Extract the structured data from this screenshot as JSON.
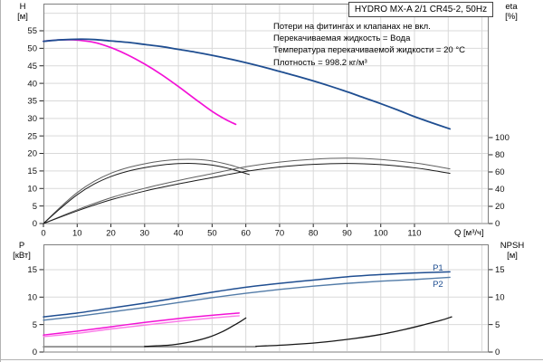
{
  "title_box": "HYDRO MX-A 2/1 CR45-2, 50Hz",
  "notes": [
    "Потери на фитингах и клапанах не вкл.",
    "Перекачиваемая жидкость = Вода",
    "Температура перекачиваемой жидкости = 20 °C",
    "Плотность = 998.2 кг/м³"
  ],
  "colors": {
    "blue": "#1f4e91",
    "blue_light": "#537ca8",
    "magenta": "#f311d6",
    "magenta_light": "#fb7ae8",
    "eta_dark": "#1a1a1a",
    "eta_grey": "#5f5f5f",
    "npsh_black": "#161616",
    "npsh_grey": "#8c8c8c",
    "grid": "#d9d9d9",
    "frame": "#7f7f7f"
  },
  "chart_data": [
    {
      "type": "line",
      "name": "head-and-efficiency",
      "x": {
        "label": "Q [м³/ч]",
        "min": 0,
        "max": 132,
        "ticks": [
          0,
          10,
          20,
          30,
          40,
          50,
          60,
          70,
          80,
          90,
          100,
          110
        ]
      },
      "y_left": {
        "name": "H",
        "unit": "[м]",
        "min": 0,
        "max": 62.8,
        "ticks": [
          0,
          5,
          10,
          15,
          20,
          25,
          30,
          35,
          40,
          45,
          50,
          55
        ]
      },
      "y_right": {
        "name": "eta",
        "unit": "[%]",
        "ticks": [
          0,
          20,
          40,
          60,
          80,
          100
        ]
      },
      "grid": true,
      "series": [
        {
          "id": "eta-1pump-upper",
          "name": "eta 1 pump (upper)",
          "axis": "eta",
          "color": "#5f5f5f",
          "width": 1,
          "points": [
            [
              0,
              0
            ],
            [
              5,
              19
            ],
            [
              10,
              36
            ],
            [
              15,
              49
            ],
            [
              20,
              58.5
            ],
            [
              25,
              65
            ],
            [
              30,
              69.5
            ],
            [
              35,
              72.8
            ],
            [
              40,
              74.5
            ],
            [
              45,
              74.6
            ],
            [
              50,
              72.8
            ],
            [
              55,
              68.5
            ],
            [
              58,
              65
            ],
            [
              61,
              61.5
            ]
          ]
        },
        {
          "id": "eta-1pump-lower",
          "name": "eta 1 pump (lower)",
          "axis": "eta",
          "color": "#1a1a1a",
          "width": 1,
          "points": [
            [
              0,
              0
            ],
            [
              5,
              17.5
            ],
            [
              10,
              33.5
            ],
            [
              15,
              45.8
            ],
            [
              20,
              54.7
            ],
            [
              25,
              60.8
            ],
            [
              30,
              65
            ],
            [
              35,
              68
            ],
            [
              40,
              69.7
            ],
            [
              45,
              69.8
            ],
            [
              50,
              68
            ],
            [
              55,
              64
            ],
            [
              58,
              60.7
            ],
            [
              61,
              57
            ]
          ]
        },
        {
          "id": "eta-2pumps-upper",
          "name": "eta 2 pumps (upper)",
          "axis": "eta",
          "color": "#5f5f5f",
          "width": 1,
          "points": [
            [
              0,
              0
            ],
            [
              10,
              16
            ],
            [
              20,
              30
            ],
            [
              30,
              41
            ],
            [
              40,
              50
            ],
            [
              50,
              58
            ],
            [
              60,
              66
            ],
            [
              70,
              71.5
            ],
            [
              80,
              74.8
            ],
            [
              90,
              76
            ],
            [
              100,
              74.5
            ],
            [
              110,
              70.5
            ],
            [
              115,
              67.5
            ],
            [
              120.5,
              63.5
            ]
          ]
        },
        {
          "id": "eta-2pumps-lower",
          "name": "eta 2 pumps (lower)",
          "axis": "eta",
          "color": "#1a1a1a",
          "width": 1,
          "points": [
            [
              0,
              0
            ],
            [
              10,
              14.7
            ],
            [
              20,
              27.6
            ],
            [
              30,
              37.7
            ],
            [
              40,
              46
            ],
            [
              50,
              53.4
            ],
            [
              60,
              60.7
            ],
            [
              70,
              65.8
            ],
            [
              80,
              68.8
            ],
            [
              90,
              69.9
            ],
            [
              100,
              68.5
            ],
            [
              110,
              64.8
            ],
            [
              115,
              62
            ],
            [
              120.5,
              58.4
            ]
          ]
        },
        {
          "id": "h-1pump",
          "name": "Q-H 1 pump",
          "axis": "H",
          "color": "#f311d6",
          "width": 1.7,
          "points": [
            [
              0,
              52.0
            ],
            [
              5,
              52.4
            ],
            [
              9,
              52.4
            ],
            [
              15,
              51.7
            ],
            [
              20,
              50.2
            ],
            [
              25,
              48.1
            ],
            [
              30,
              45.5
            ],
            [
              35,
              42.5
            ],
            [
              40,
              39.1
            ],
            [
              45,
              35.5
            ],
            [
              50,
              32.0
            ],
            [
              54,
              29.7
            ],
            [
              57,
              28.3
            ]
          ]
        },
        {
          "id": "h-2pumps",
          "name": "Q-H 2 pumps",
          "axis": "H",
          "color": "#1f4e91",
          "width": 1.8,
          "points": [
            [
              0,
              52.0
            ],
            [
              5,
              52.4
            ],
            [
              11,
              52.6
            ],
            [
              15,
              52.5
            ],
            [
              20,
              52.1
            ],
            [
              25,
              51.7
            ],
            [
              30,
              51.1
            ],
            [
              35,
              50.5
            ],
            [
              40,
              49.7
            ],
            [
              45,
              48.9
            ],
            [
              50,
              48.0
            ],
            [
              55,
              47.0
            ],
            [
              60,
              45.9
            ],
            [
              65,
              44.7
            ],
            [
              70,
              43.4
            ],
            [
              75,
              42.1
            ],
            [
              80,
              40.7
            ],
            [
              85,
              39.2
            ],
            [
              90,
              37.6
            ],
            [
              95,
              35.9
            ],
            [
              100,
              34.2
            ],
            [
              105,
              32.4
            ],
            [
              110,
              30.5
            ],
            [
              115,
              28.8
            ],
            [
              120.5,
              27.0
            ]
          ]
        }
      ]
    },
    {
      "type": "line",
      "name": "power-and-npsh",
      "x": {
        "min": 0,
        "max": 132
      },
      "y_left": {
        "name": "P",
        "unit": "[кВт]",
        "min": 0,
        "max": 19.6,
        "ticks": [
          0,
          5,
          10,
          15
        ]
      },
      "y_right": {
        "name": "NPSH",
        "unit": "[м]",
        "ticks": [
          0,
          5,
          10,
          15
        ]
      },
      "grid": true,
      "series": [
        {
          "id": "npsh-baseline",
          "name": "NPSH flat section",
          "axis": "P",
          "color": "#8c8c8c",
          "width": 1.8,
          "points": [
            [
              0,
              0.97
            ],
            [
              63,
              0.97
            ]
          ]
        },
        {
          "id": "npsh-1pump",
          "name": "NPSH 1 pump",
          "axis": "P",
          "color": "#161616",
          "width": 1.3,
          "points": [
            [
              30,
              1.02
            ],
            [
              38,
              1.3
            ],
            [
              44,
              1.9
            ],
            [
              49,
              2.7
            ],
            [
              53,
              3.7
            ],
            [
              56,
              4.7
            ],
            [
              58.5,
              5.6
            ],
            [
              60,
              6.2
            ]
          ]
        },
        {
          "id": "npsh-2pumps",
          "name": "NPSH 2 pumps",
          "axis": "P",
          "color": "#161616",
          "width": 1.3,
          "points": [
            [
              63,
              1.05
            ],
            [
              72,
              1.3
            ],
            [
              82,
              1.75
            ],
            [
              92,
              2.45
            ],
            [
              100,
              3.2
            ],
            [
              107,
              4.1
            ],
            [
              113,
              5.0
            ],
            [
              118,
              5.8
            ],
            [
              121,
              6.4
            ]
          ]
        },
        {
          "id": "p2-1pump",
          "name": "P2 1 pump",
          "axis": "P",
          "color": "#fb7ae8",
          "width": 1.4,
          "points": [
            [
              0,
              2.8
            ],
            [
              10,
              3.4
            ],
            [
              20,
              4.2
            ],
            [
              30,
              4.9
            ],
            [
              40,
              5.6
            ],
            [
              50,
              6.2
            ],
            [
              58,
              6.6
            ]
          ]
        },
        {
          "id": "p1-1pump",
          "name": "P1 1 pump",
          "axis": "P",
          "color": "#f311d6",
          "width": 1.5,
          "points": [
            [
              0,
              3.1
            ],
            [
              10,
              3.8
            ],
            [
              20,
              4.6
            ],
            [
              30,
              5.4
            ],
            [
              40,
              6.1
            ],
            [
              50,
              6.7
            ],
            [
              58,
              7.1
            ]
          ]
        },
        {
          "id": "p2-2pumps",
          "name": "P2 2 pumps",
          "axis": "P",
          "color": "#537ca8",
          "width": 1.4,
          "points": [
            [
              0,
              5.8
            ],
            [
              10,
              6.5
            ],
            [
              20,
              7.3
            ],
            [
              30,
              8.1
            ],
            [
              40,
              9.0
            ],
            [
              50,
              9.9
            ],
            [
              60,
              10.7
            ],
            [
              70,
              11.4
            ],
            [
              80,
              12.0
            ],
            [
              90,
              12.5
            ],
            [
              100,
              12.9
            ],
            [
              110,
              13.2
            ],
            [
              120.5,
              13.6
            ]
          ]
        },
        {
          "id": "p1-2pumps",
          "name": "P1 2 pumps",
          "axis": "P",
          "color": "#1f4e91",
          "width": 1.5,
          "points": [
            [
              0,
              6.4
            ],
            [
              10,
              7.1
            ],
            [
              20,
              8.0
            ],
            [
              30,
              8.9
            ],
            [
              40,
              9.9
            ],
            [
              50,
              10.9
            ],
            [
              60,
              11.8
            ],
            [
              70,
              12.5
            ],
            [
              80,
              13.1
            ],
            [
              90,
              13.7
            ],
            [
              100,
              14.1
            ],
            [
              110,
              14.4
            ],
            [
              120.5,
              14.6
            ]
          ]
        }
      ],
      "annotations": [
        {
          "text": "P1",
          "q": 117,
          "v": 15.3,
          "color": "#1f4e91"
        },
        {
          "text": "P2",
          "q": 117,
          "v": 12.4,
          "color": "#1f4e91"
        }
      ]
    }
  ]
}
